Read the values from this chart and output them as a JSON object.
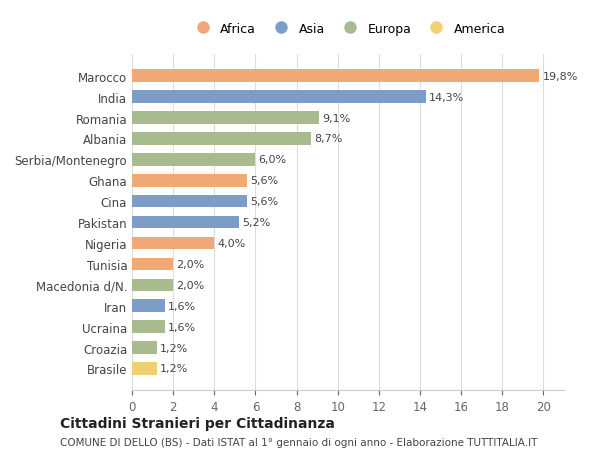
{
  "categories": [
    "Marocco",
    "India",
    "Romania",
    "Albania",
    "Serbia/Montenegro",
    "Ghana",
    "Cina",
    "Pakistan",
    "Nigeria",
    "Tunisia",
    "Macedonia d/N.",
    "Iran",
    "Ucraina",
    "Croazia",
    "Brasile"
  ],
  "values": [
    19.8,
    14.3,
    9.1,
    8.7,
    6.0,
    5.6,
    5.6,
    5.2,
    4.0,
    2.0,
    2.0,
    1.6,
    1.6,
    1.2,
    1.2
  ],
  "labels": [
    "19,8%",
    "14,3%",
    "9,1%",
    "8,7%",
    "6,0%",
    "5,6%",
    "5,6%",
    "5,2%",
    "4,0%",
    "2,0%",
    "2,0%",
    "1,6%",
    "1,6%",
    "1,2%",
    "1,2%"
  ],
  "continents": [
    "Africa",
    "Asia",
    "Europa",
    "Europa",
    "Europa",
    "Africa",
    "Asia",
    "Asia",
    "Africa",
    "Africa",
    "Europa",
    "Asia",
    "Europa",
    "Europa",
    "America"
  ],
  "colors": {
    "Africa": "#F0A875",
    "Asia": "#7B9DC8",
    "Europa": "#A8BB8F",
    "America": "#F0D070"
  },
  "legend_order": [
    "Africa",
    "Asia",
    "Europa",
    "America"
  ],
  "xlim": [
    0,
    21
  ],
  "xticks": [
    0,
    2,
    4,
    6,
    8,
    10,
    12,
    14,
    16,
    18,
    20
  ],
  "title": "Cittadini Stranieri per Cittadinanza",
  "subtitle": "COMUNE DI DELLO (BS) - Dati ISTAT al 1° gennaio di ogni anno - Elaborazione TUTTITALIA.IT",
  "background_color": "#ffffff",
  "bar_height": 0.6
}
